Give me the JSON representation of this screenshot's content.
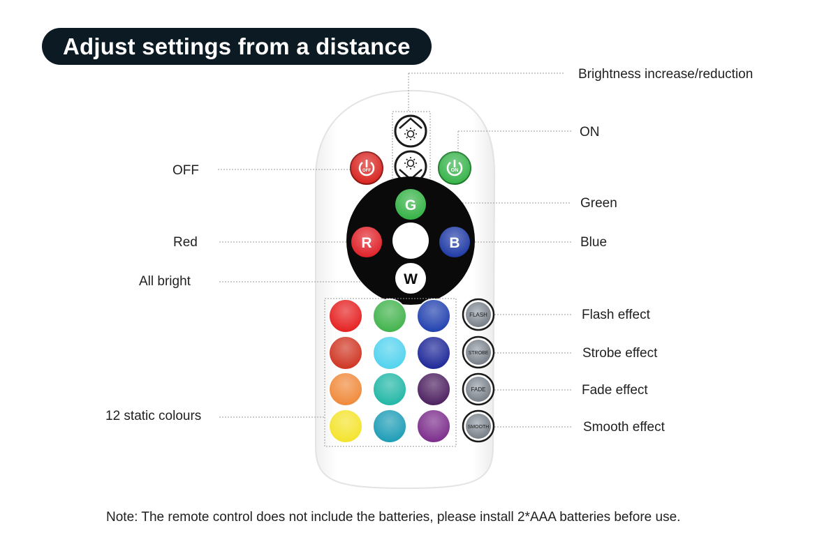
{
  "title": "Adjust settings from a distance",
  "labels": {
    "brightness": "Brightness increase/reduction",
    "on": "ON",
    "off": "OFF",
    "green": "Green",
    "red": "Red",
    "blue": "Blue",
    "all_bright": "All bright",
    "flash": "Flash effect",
    "strobe": "Strobe effect",
    "fade": "Fade effect",
    "smooth": "Smooth effect",
    "static_colours": "12 static colours"
  },
  "remote": {
    "off_button": "OFF",
    "on_button": "ON",
    "rgbw": {
      "g": "G",
      "r": "R",
      "b": "B",
      "w": "W"
    },
    "effects": [
      "FLASH",
      "STROBE",
      "FADE",
      "SMOOTH"
    ],
    "colour_grid": [
      [
        "#e51e1e",
        "#3fb24a",
        "#1f3fae"
      ],
      [
        "#cf3320",
        "#4fd2ee",
        "#1b2597"
      ],
      [
        "#f08838",
        "#1fb6a5",
        "#4a1d5e"
      ],
      [
        "#f4e32a",
        "#1a9bb5",
        "#7a2a8a"
      ]
    ],
    "colors": {
      "off_red": "#d8231f",
      "on_green": "#36b34a",
      "g_green": "#34b245",
      "r_red": "#df2128",
      "b_blue": "#1f3aa5",
      "wheel": "#0a0a0a"
    }
  },
  "note": "Note: The remote control does not include the batteries, please install 2*AAA batteries before use."
}
